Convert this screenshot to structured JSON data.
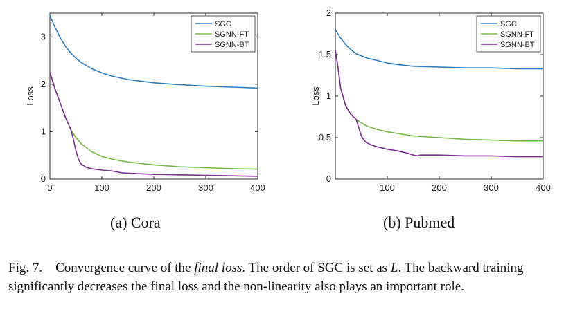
{
  "figure": {
    "caption_label": "Fig. 7.",
    "caption_part1": "Convergence curve of the ",
    "caption_italic": "final loss",
    "caption_part2": ". The order of SGC is set as ",
    "caption_var": "L",
    "caption_part3": ". The backward training significantly decreases the final loss and the non-linearity also plays an important role."
  },
  "colors": {
    "SGC": "#2b7bbf",
    "SGNN-FT": "#77b843",
    "SGNN-BT": "#7b2c8f"
  },
  "chart_data": [
    {
      "type": "line",
      "subcaption": "(a) Cora",
      "title": "",
      "xlabel": "",
      "ylabel": "Loss",
      "xlim": [
        0,
        400
      ],
      "ylim": [
        0,
        3.5
      ],
      "xticks": [
        0,
        100,
        200,
        300,
        400
      ],
      "yticks": [
        0,
        1,
        2,
        3
      ],
      "legend_position": "top-right",
      "series": [
        {
          "name": "SGC",
          "x": [
            0,
            10,
            20,
            30,
            40,
            50,
            60,
            80,
            100,
            120,
            150,
            200,
            250,
            300,
            350,
            400
          ],
          "y": [
            3.45,
            3.2,
            2.98,
            2.8,
            2.66,
            2.55,
            2.46,
            2.33,
            2.24,
            2.17,
            2.1,
            2.03,
            1.99,
            1.96,
            1.94,
            1.92
          ]
        },
        {
          "name": "SGNN-FT",
          "x": [
            0,
            10,
            20,
            30,
            40,
            50,
            60,
            80,
            100,
            120,
            150,
            200,
            250,
            300,
            350,
            400
          ],
          "y": [
            2.25,
            1.9,
            1.6,
            1.3,
            1.05,
            0.88,
            0.75,
            0.58,
            0.48,
            0.42,
            0.36,
            0.3,
            0.26,
            0.24,
            0.22,
            0.21
          ]
        },
        {
          "name": "SGNN-BT",
          "x": [
            0,
            10,
            20,
            30,
            40,
            45,
            50,
            55,
            60,
            70,
            80,
            100,
            120,
            140,
            160,
            200,
            250,
            300,
            350,
            400
          ],
          "y": [
            2.25,
            1.9,
            1.6,
            1.3,
            1.05,
            0.85,
            0.6,
            0.42,
            0.32,
            0.25,
            0.22,
            0.19,
            0.17,
            0.13,
            0.12,
            0.1,
            0.09,
            0.08,
            0.07,
            0.06
          ]
        }
      ]
    },
    {
      "type": "line",
      "subcaption": "(b) Pubmed",
      "title": "",
      "xlabel": "",
      "ylabel": "Loss",
      "xlim": [
        0,
        400
      ],
      "ylim": [
        0,
        2
      ],
      "xticks": [
        100,
        200,
        300,
        400
      ],
      "yticks": [
        0,
        0.5,
        1,
        1.5,
        2
      ],
      "legend_position": "top-right",
      "series": [
        {
          "name": "SGC",
          "x": [
            0,
            10,
            20,
            30,
            40,
            60,
            80,
            100,
            120,
            150,
            200,
            250,
            300,
            350,
            400
          ],
          "y": [
            1.8,
            1.7,
            1.62,
            1.56,
            1.51,
            1.46,
            1.43,
            1.4,
            1.38,
            1.36,
            1.35,
            1.34,
            1.34,
            1.33,
            1.33
          ]
        },
        {
          "name": "SGNN-FT",
          "x": [
            0,
            5,
            10,
            20,
            30,
            40,
            50,
            60,
            80,
            100,
            120,
            150,
            200,
            250,
            300,
            350,
            400
          ],
          "y": [
            1.55,
            1.35,
            1.1,
            0.88,
            0.78,
            0.72,
            0.68,
            0.64,
            0.6,
            0.57,
            0.55,
            0.52,
            0.5,
            0.48,
            0.47,
            0.46,
            0.46
          ]
        },
        {
          "name": "SGNN-BT",
          "x": [
            0,
            5,
            10,
            20,
            30,
            40,
            45,
            50,
            55,
            60,
            70,
            80,
            100,
            120,
            140,
            150,
            160,
            162,
            200,
            250,
            300,
            350,
            400
          ],
          "y": [
            1.55,
            1.35,
            1.1,
            0.88,
            0.78,
            0.72,
            0.62,
            0.52,
            0.47,
            0.44,
            0.41,
            0.39,
            0.36,
            0.34,
            0.31,
            0.29,
            0.28,
            0.29,
            0.29,
            0.28,
            0.28,
            0.27,
            0.27
          ]
        }
      ]
    }
  ]
}
